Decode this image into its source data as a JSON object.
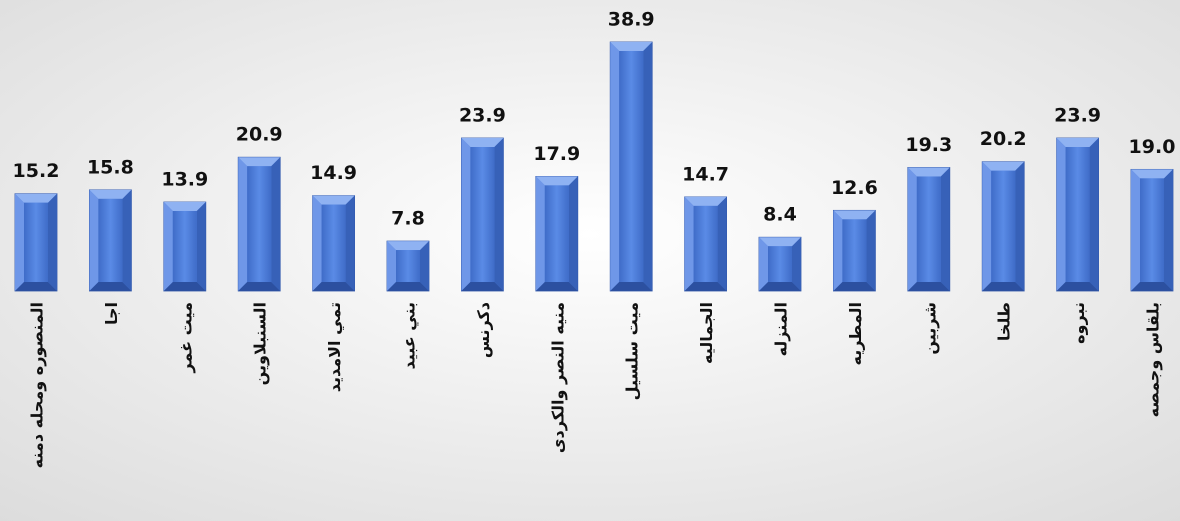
{
  "chart_data": {
    "type": "bar",
    "categories": [
      "المنصوره ومحله دمنه",
      "اجا",
      "ميت غمر",
      "السنبلاوين",
      "تمي الامديد",
      "بني عبيد",
      "دكرنس",
      "منيه النصر والكردى",
      "ميت سلسيل",
      "الجماليه",
      "المنزله",
      "المطريه",
      "شربين",
      "طلخا",
      "نبروه",
      "بلقاس وجمصه"
    ],
    "values": [
      15.2,
      15.8,
      13.9,
      20.9,
      14.9,
      7.8,
      23.9,
      17.9,
      38.9,
      14.7,
      8.4,
      12.6,
      19.3,
      20.2,
      23.9,
      19.0
    ],
    "value_labels": [
      "15.2",
      "15.8",
      "13.9",
      "20.9",
      "14.9",
      "7.8",
      "23.9",
      "17.9",
      "38.9",
      "14.7",
      "8.4",
      "12.6",
      "19.3",
      "20.2",
      "23.9",
      "19.0"
    ],
    "color": "#4f7fdc"
  }
}
